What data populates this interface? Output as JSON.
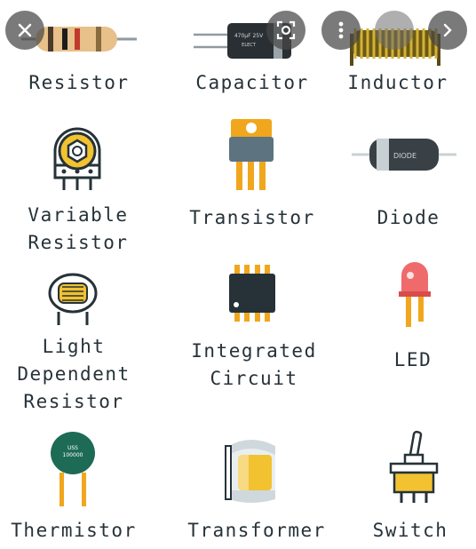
{
  "components": [
    {
      "label_lines": [
        "Resistor"
      ],
      "icon": "resistor-icon"
    },
    {
      "label_lines": [
        "Capacitor"
      ],
      "icon": "capacitor-icon",
      "icon_text": [
        "470μF 25V",
        "ELECT"
      ]
    },
    {
      "label_lines": [
        "Inductor"
      ],
      "icon": "inductor-icon"
    },
    {
      "label_lines": [
        "Variable",
        "Resistor"
      ],
      "icon": "potentiometer-icon"
    },
    {
      "label_lines": [
        "Transistor"
      ],
      "icon": "transistor-icon"
    },
    {
      "label_lines": [
        "Diode"
      ],
      "icon": "diode-icon",
      "icon_text": [
        "DIODE"
      ]
    },
    {
      "label_lines": [
        "Light",
        "Dependent",
        "Resistor"
      ],
      "icon": "ldr-icon"
    },
    {
      "label_lines": [
        "Integrated",
        "Circuit"
      ],
      "icon": "integrated-circuit-icon"
    },
    {
      "label_lines": [
        "LED"
      ],
      "icon": "led-icon"
    },
    {
      "label_lines": [
        "Thermistor"
      ],
      "icon": "thermistor-icon",
      "icon_text": [
        "USS",
        "100000"
      ]
    },
    {
      "label_lines": [
        "Transformer"
      ],
      "icon": "transformer-icon"
    },
    {
      "label_lines": [
        "Switch"
      ],
      "icon": "switch-icon"
    }
  ],
  "overlay": {
    "close": "close-icon",
    "lens": "visual-search-icon",
    "more": "more-options-icon",
    "next": "chevron-right-icon"
  }
}
